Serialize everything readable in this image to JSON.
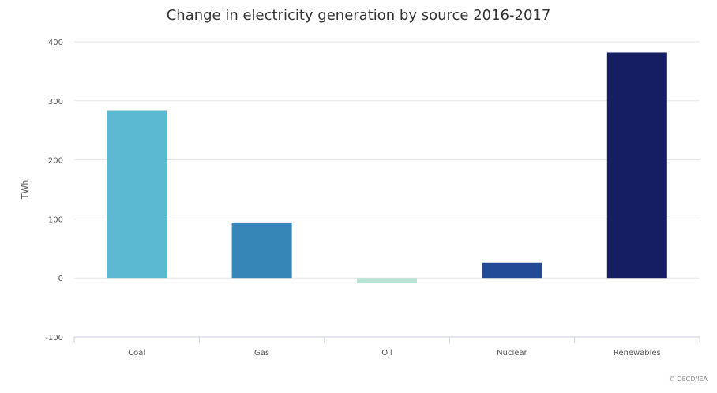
{
  "chart_data": {
    "type": "bar",
    "title": "Change in electricity generation by source 2016-2017",
    "xlabel": "",
    "ylabel": "TWh",
    "categories": [
      "Coal",
      "Gas",
      "Oil",
      "Nuclear",
      "Renewables"
    ],
    "values": [
      283,
      94,
      -9,
      26,
      382
    ],
    "ylim": [
      -100,
      400
    ],
    "yticks": [
      -100,
      0,
      100,
      200,
      300,
      400
    ],
    "ytick_labels": [
      "-100",
      "0",
      "100",
      "200",
      "300",
      "400"
    ],
    "grid": true,
    "legend": "none"
  },
  "colors": {
    "bars": [
      "#5cb9d2",
      "#3686b8",
      "#b7e2d4",
      "#234a96",
      "#161e63"
    ],
    "grid": "#e6e6e6",
    "axis": "#c8d0dc",
    "tick_text": "#555555"
  },
  "copyright": "© OECD/IEA"
}
